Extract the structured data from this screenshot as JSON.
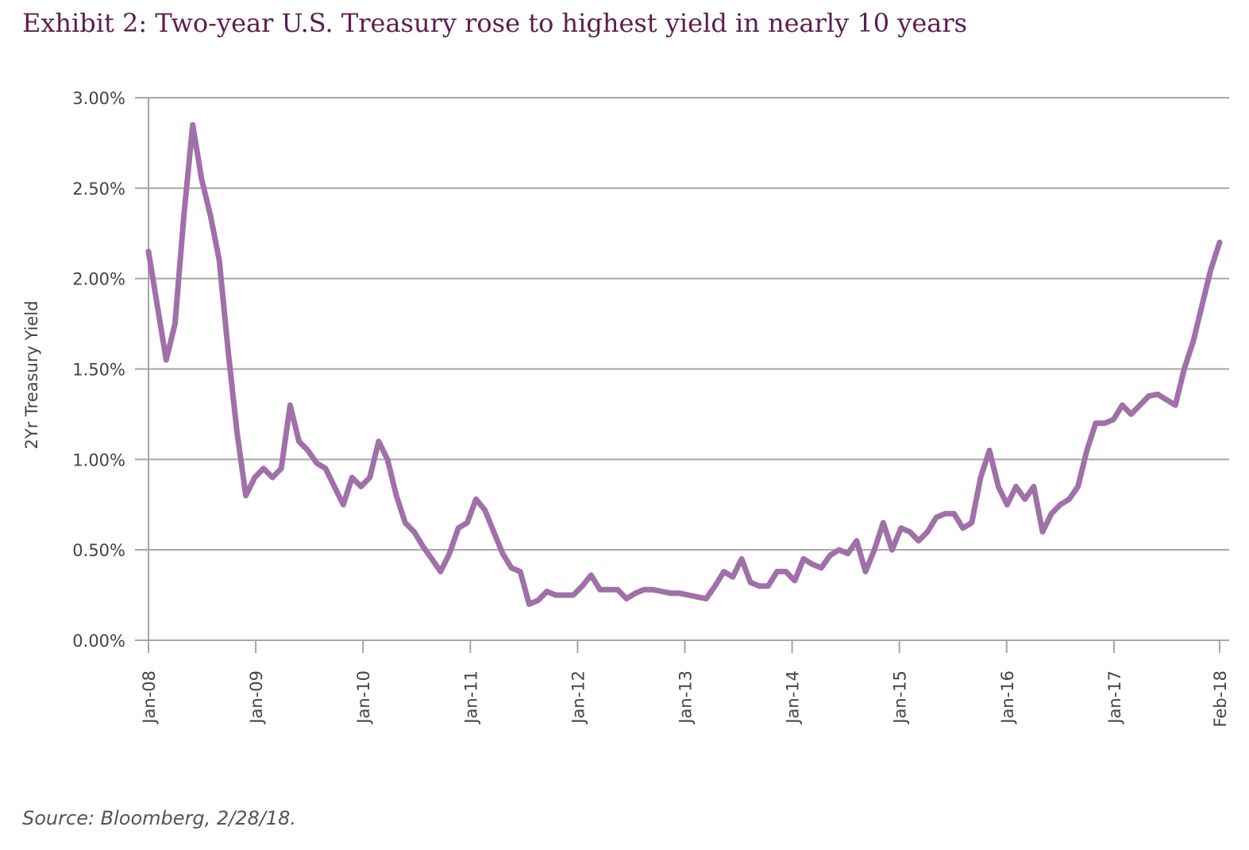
{
  "title": "Exhibit 2: Two-year U.S. Treasury rose to highest yield in nearly 10 years",
  "source": "Source: Bloomberg, 2/28/18.",
  "colors": {
    "title": "#5e1c4e",
    "line": "#a070a8",
    "grid": "#a6a6a6",
    "axis": "#a6a6a6"
  },
  "chart_data": {
    "type": "line",
    "title": "Exhibit 2: Two-year U.S. Treasury rose to highest yield in nearly 10 years",
    "xlabel": "",
    "ylabel": "2Yr Treasury Yield",
    "ylim": [
      0,
      3.0
    ],
    "yticks": [
      "0.00%",
      "0.50%",
      "1.00%",
      "1.50%",
      "2.00%",
      "2.50%",
      "3.00%"
    ],
    "xticks": [
      "Jan-08",
      "Jan-09",
      "Jan-10",
      "Jan-11",
      "Jan-12",
      "Jan-13",
      "Jan-14",
      "Jan-15",
      "Jan-16",
      "Jan-17",
      "Feb-18"
    ],
    "grid": true,
    "legend": "none",
    "series": [
      {
        "x": [
          "2008-01",
          "2008-02",
          "2008-03",
          "2008-04",
          "2008-05",
          "2008-06",
          "2008-07",
          "2008-08",
          "2008-09",
          "2008-10",
          "2008-11",
          "2008-12",
          "2009-01",
          "2009-02",
          "2009-03",
          "2009-04",
          "2009-05",
          "2009-06",
          "2009-07",
          "2009-08",
          "2009-09",
          "2009-10",
          "2009-11",
          "2009-12",
          "2010-01",
          "2010-02",
          "2010-03",
          "2010-04",
          "2010-05",
          "2010-06",
          "2010-07",
          "2010-08",
          "2010-09",
          "2010-10",
          "2010-11",
          "2010-12",
          "2011-01",
          "2011-02",
          "2011-03",
          "2011-04",
          "2011-05",
          "2011-06",
          "2011-07",
          "2011-08",
          "2011-09",
          "2011-10",
          "2011-11",
          "2011-12",
          "2012-01",
          "2012-02",
          "2012-03",
          "2012-04",
          "2012-05",
          "2012-06",
          "2012-07",
          "2012-08",
          "2012-09",
          "2012-10",
          "2012-11",
          "2012-12",
          "2013-01",
          "2013-02",
          "2013-03",
          "2013-04",
          "2013-05",
          "2013-06",
          "2013-07",
          "2013-08",
          "2013-09",
          "2013-10",
          "2013-11",
          "2013-12",
          "2014-01",
          "2014-02",
          "2014-03",
          "2014-04",
          "2014-05",
          "2014-06",
          "2014-07",
          "2014-08",
          "2014-09",
          "2014-10",
          "2014-11",
          "2014-12",
          "2015-01",
          "2015-02",
          "2015-03",
          "2015-04",
          "2015-05",
          "2015-06",
          "2015-07",
          "2015-08",
          "2015-09",
          "2015-10",
          "2015-11",
          "2015-12",
          "2016-01",
          "2016-02",
          "2016-03",
          "2016-04",
          "2016-05",
          "2016-06",
          "2016-07",
          "2016-08",
          "2016-09",
          "2016-10",
          "2016-11",
          "2016-12",
          "2017-01",
          "2017-02",
          "2017-03",
          "2017-04",
          "2017-05",
          "2017-06",
          "2017-07",
          "2017-08",
          "2017-09",
          "2017-10",
          "2017-11",
          "2017-12",
          "2018-01",
          "2018-02"
        ],
        "values": [
          2.15,
          1.85,
          1.55,
          1.75,
          2.35,
          2.85,
          2.55,
          2.35,
          2.1,
          1.6,
          1.15,
          0.8,
          0.9,
          0.95,
          0.9,
          0.95,
          1.3,
          1.1,
          1.05,
          0.98,
          0.95,
          0.85,
          0.75,
          0.9,
          0.85,
          0.9,
          1.1,
          1.0,
          0.8,
          0.65,
          0.6,
          0.52,
          0.45,
          0.38,
          0.48,
          0.62,
          0.65,
          0.78,
          0.72,
          0.6,
          0.48,
          0.4,
          0.38,
          0.2,
          0.22,
          0.27,
          0.25,
          0.25,
          0.25,
          0.3,
          0.36,
          0.28,
          0.28,
          0.28,
          0.23,
          0.26,
          0.28,
          0.28,
          0.27,
          0.26,
          0.26,
          0.25,
          0.24,
          0.23,
          0.3,
          0.38,
          0.35,
          0.45,
          0.32,
          0.3,
          0.3,
          0.38,
          0.38,
          0.33,
          0.45,
          0.42,
          0.4,
          0.47,
          0.5,
          0.48,
          0.55,
          0.38,
          0.5,
          0.65,
          0.5,
          0.62,
          0.6,
          0.55,
          0.6,
          0.68,
          0.7,
          0.7,
          0.62,
          0.65,
          0.9,
          1.05,
          0.85,
          0.75,
          0.85,
          0.78,
          0.85,
          0.6,
          0.7,
          0.75,
          0.78,
          0.85,
          1.05,
          1.2,
          1.2,
          1.22,
          1.3,
          1.25,
          1.3,
          1.35,
          1.36,
          1.33,
          1.3,
          1.5,
          1.65,
          1.85,
          2.05,
          2.2
        ]
      }
    ]
  }
}
